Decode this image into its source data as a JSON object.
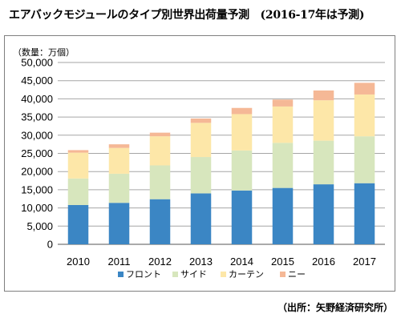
{
  "header": {
    "title": "エアバックモジュールのタイプ別世界出荷量予測　(2016-17年は予測)"
  },
  "footer": {
    "source": "（出所：矢野経済研究所）"
  },
  "chart_data": {
    "type": "bar",
    "stacked": true,
    "title": "エアバックモジュールのタイプ別世界出荷量予測　(2016-17年は予測)",
    "ylabel": "（数量：万個）",
    "xlabel": "",
    "ylim": [
      0,
      50000
    ],
    "ytick_step": 5000,
    "ytick_labels": [
      "0",
      "5,000",
      "10,000",
      "15,000",
      "20,000",
      "25,000",
      "30,000",
      "35,000",
      "40,000",
      "45,000",
      "50,000"
    ],
    "grid": true,
    "legend_position": "bottom",
    "categories": [
      "2010",
      "2011",
      "2012",
      "2013",
      "2014",
      "2015",
      "2016",
      "2017"
    ],
    "series": [
      {
        "name": "フロント",
        "color": "#3b86c4",
        "values": [
          10800,
          11400,
          12400,
          14000,
          14800,
          15500,
          16500,
          16800
        ]
      },
      {
        "name": "サイド",
        "color": "#d7e6bd",
        "values": [
          7300,
          8000,
          9300,
          10000,
          11000,
          12400,
          12000,
          12900
        ]
      },
      {
        "name": "カーテン",
        "color": "#fde7a8",
        "values": [
          7100,
          7100,
          8000,
          9400,
          10000,
          10000,
          11100,
          11500
        ]
      },
      {
        "name": "ニー",
        "color": "#f5b896",
        "values": [
          700,
          1000,
          1000,
          1200,
          1700,
          1900,
          2700,
          3200
        ]
      }
    ]
  }
}
